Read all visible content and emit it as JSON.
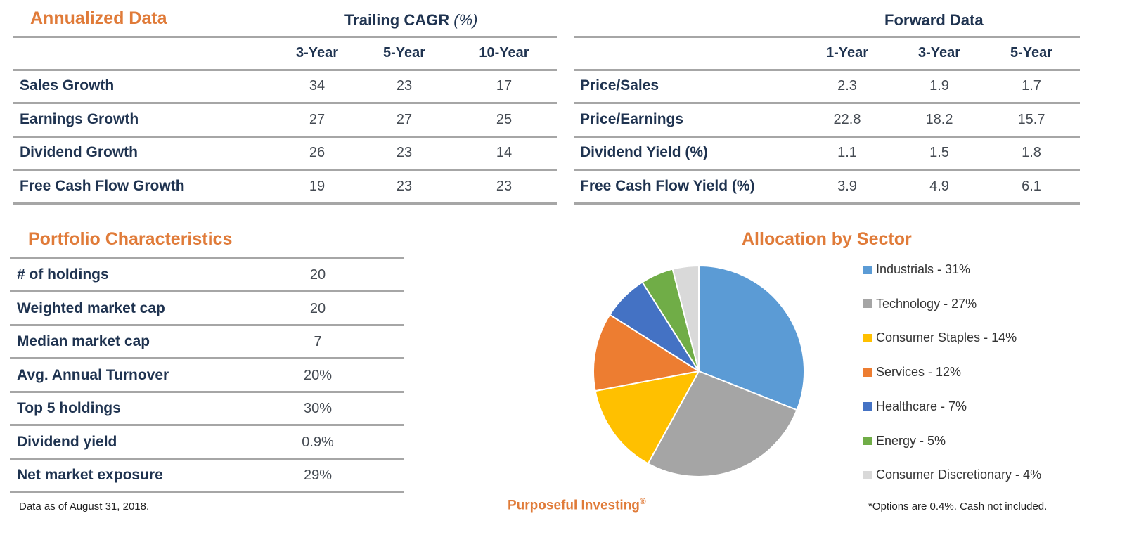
{
  "annualized": {
    "title": "Annualized Data",
    "group_header": "Trailing CAGR",
    "group_header_unit": "(%)",
    "columns": [
      "3-Year",
      "5-Year",
      "10-Year"
    ],
    "rows": [
      {
        "label": "Sales Growth",
        "values": [
          "34",
          "23",
          "17"
        ]
      },
      {
        "label": "Earnings Growth",
        "values": [
          "27",
          "27",
          "25"
        ]
      },
      {
        "label": "Dividend Growth",
        "values": [
          "26",
          "23",
          "14"
        ]
      },
      {
        "label": "Free Cash Flow Growth",
        "values": [
          "19",
          "23",
          "23"
        ]
      }
    ]
  },
  "forward": {
    "group_header": "Forward Data",
    "columns": [
      "1-Year",
      "3-Year",
      "5-Year"
    ],
    "rows": [
      {
        "label": "Price/Sales",
        "values": [
          "2.3",
          "1.9",
          "1.7"
        ]
      },
      {
        "label": "Price/Earnings",
        "values": [
          "22.8",
          "18.2",
          "15.7"
        ]
      },
      {
        "label": "Dividend Yield (%)",
        "values": [
          "1.1",
          "1.5",
          "1.8"
        ]
      },
      {
        "label": "Free Cash Flow Yield (%)",
        "values": [
          "3.9",
          "4.9",
          "6.1"
        ]
      }
    ]
  },
  "portfolio": {
    "title": "Portfolio Characteristics",
    "rows": [
      {
        "label": "# of holdings",
        "value": "20"
      },
      {
        "label": "Weighted market cap",
        "value": "20"
      },
      {
        "label": "Median market cap",
        "value": "7"
      },
      {
        "label": "Avg. Annual Turnover",
        "value": "20%"
      },
      {
        "label": "Top 5 holdings",
        "value": "30%"
      },
      {
        "label": "Dividend yield",
        "value": "0.9%"
      },
      {
        "label": "Net market exposure",
        "value": "29%"
      }
    ]
  },
  "chart_data": {
    "type": "pie",
    "title": "Allocation by Sector",
    "legend_position": "right",
    "categories": [
      "Industrials - 31%",
      "Technology - 27%",
      "Consumer Staples - 14%",
      "Services - 12%",
      "Healthcare - 7%",
      "Energy - 5%",
      "Consumer Discretionary - 4%"
    ],
    "values": [
      31,
      27,
      14,
      12,
      7,
      5,
      4
    ],
    "colors": [
      "#5b9bd5",
      "#a5a5a5",
      "#ffc000",
      "#ed7d31",
      "#4472c4",
      "#70ad47",
      "#d9d9d9"
    ]
  },
  "footer": {
    "as_of": "Data as of August 31, 2018.",
    "brand": "Purposeful Investing",
    "brand_mark": "®",
    "note": "*Options are 0.4%. Cash not included."
  }
}
